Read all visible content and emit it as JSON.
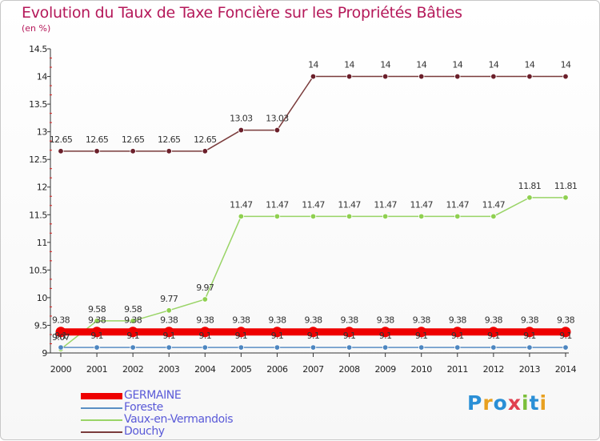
{
  "chart_data": {
    "type": "line",
    "title": "Evolution du Taux de Taxe Foncière sur les Propriétés Bâties",
    "ylabel": "(en %)",
    "xlabel": "",
    "categories": [
      "2000",
      "2001",
      "2002",
      "2003",
      "2004",
      "2005",
      "2006",
      "2007",
      "2008",
      "2009",
      "2010",
      "2011",
      "2012",
      "2013",
      "2014"
    ],
    "ylim": [
      9,
      14.5
    ],
    "yticks": [
      "9",
      "9.5",
      "10",
      "10.5",
      "11",
      "11.5",
      "12",
      "12.5",
      "13",
      "13.5",
      "14",
      "14.5"
    ],
    "series": [
      {
        "name": "GERMAINE",
        "color": "#ee0000",
        "values": [
          9.38,
          9.38,
          9.38,
          9.38,
          9.38,
          9.38,
          9.38,
          9.38,
          9.38,
          9.38,
          9.38,
          9.38,
          9.38,
          9.38,
          9.38
        ],
        "labels": [
          "9.38",
          "9.38",
          "9.38",
          "9.38",
          "9.38",
          "9.38",
          "9.38",
          "9.38",
          "9.38",
          "9.38",
          "9.38",
          "9.38",
          "9.38",
          "9.38",
          "9.38"
        ]
      },
      {
        "name": "Foreste",
        "color": "#5a8fc4",
        "values": [
          9.1,
          9.1,
          9.1,
          9.1,
          9.1,
          9.1,
          9.1,
          9.1,
          9.1,
          9.1,
          9.1,
          9.1,
          9.1,
          9.1,
          9.1
        ],
        "labels": [
          "9.1",
          "9.1",
          "9.1",
          "9.1",
          "9.1",
          "9.1",
          "9.1",
          "9.1",
          "9.1",
          "9.1",
          "9.1",
          "9.1",
          "9.1",
          "9.1",
          "9.1"
        ]
      },
      {
        "name": "Vaux-en-Vermandois",
        "color": "#99d466",
        "values": [
          9.07,
          9.58,
          9.58,
          9.77,
          9.97,
          11.47,
          11.47,
          11.47,
          11.47,
          11.47,
          11.47,
          11.47,
          11.47,
          11.81,
          11.81
        ],
        "labels": [
          "9.07",
          "9.58",
          "9.58",
          "9.77",
          "9.97",
          "11.47",
          "11.47",
          "11.47",
          "11.47",
          "11.47",
          "11.47",
          "11.47",
          "11.47",
          "11.81",
          "11.81"
        ]
      },
      {
        "name": "Douchy",
        "color": "#7a3b3b",
        "values": [
          12.65,
          12.65,
          12.65,
          12.65,
          12.65,
          13.03,
          13.03,
          14,
          14,
          14,
          14,
          14,
          14,
          14,
          14
        ],
        "labels": [
          "12.65",
          "12.65",
          "12.65",
          "12.65",
          "12.65",
          "13.03",
          "13.03",
          "14",
          "14",
          "14",
          "14",
          "14",
          "14",
          "14",
          "14"
        ]
      }
    ]
  },
  "logo": {
    "letters": [
      "P",
      "r",
      "o",
      "x",
      "i",
      "t",
      "i"
    ],
    "colors": [
      "#2a8fd6",
      "#e8a020",
      "#2a8fd6",
      "#e04050",
      "#7bbf3a",
      "#2a8fd6",
      "#e8a020"
    ]
  }
}
